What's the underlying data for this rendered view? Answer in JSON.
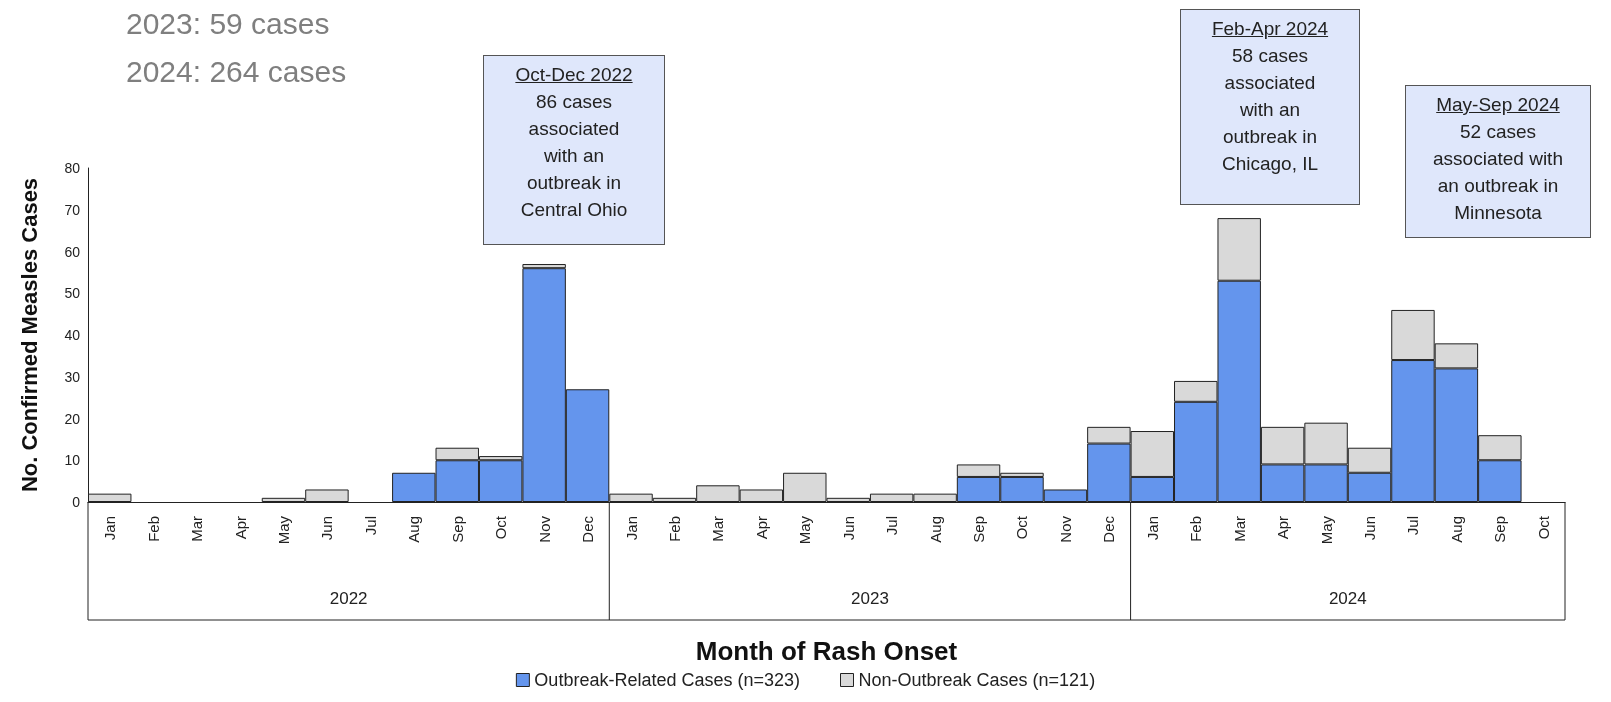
{
  "chart_data": {
    "type": "bar",
    "stacked": true,
    "categories": [
      "Jan",
      "Feb",
      "Mar",
      "Apr",
      "May",
      "Jun",
      "Jul",
      "Aug",
      "Sep",
      "Oct",
      "Nov",
      "Dec",
      "Jan",
      "Feb",
      "Mar",
      "Apr",
      "May",
      "Jun",
      "Jul",
      "Aug",
      "Sep",
      "Oct",
      "Nov",
      "Dec",
      "Jan",
      "Feb",
      "Mar",
      "Apr",
      "May",
      "Jun",
      "Jul",
      "Aug",
      "Sep",
      "Oct"
    ],
    "series": [
      {
        "name": "Outbreak-Related Cases (n=323)",
        "color": "#6495ed",
        "values": [
          0,
          0,
          0,
          0,
          0,
          0,
          0,
          7,
          10,
          10,
          56,
          27,
          0,
          0,
          0,
          0,
          0,
          0,
          0,
          0,
          6,
          6,
          3,
          14,
          6,
          24,
          53,
          9,
          9,
          7,
          34,
          32,
          10,
          0
        ]
      },
      {
        "name": "Non-Outbreak Cases (n=121)",
        "color": "#d9d9d9",
        "values": [
          2,
          0,
          0,
          0,
          1,
          3,
          0,
          0,
          3,
          1,
          1,
          0,
          2,
          1,
          4,
          3,
          7,
          1,
          2,
          2,
          3,
          1,
          0,
          4,
          11,
          5,
          15,
          9,
          10,
          6,
          12,
          6,
          6,
          0
        ]
      }
    ],
    "xlabel": "Month of Rash Onset",
    "ylabel": "No. Confirmed Measles Cases",
    "ylim": [
      0,
      80
    ],
    "yticks": [
      0,
      10,
      20,
      30,
      40,
      50,
      60,
      70,
      80
    ],
    "grid": false,
    "legend": "bottom",
    "annotations": [
      "2023: 59 cases",
      "2024: 264 cases",
      "Oct-Dec 2022\n86 cases\nassociated\nwith an\noutbreak in\nCentral Ohio",
      "Feb-Apr 2024\n58 cases\nassociated\nwith an\noutbreak in\nChicago, IL",
      "May-Sep 2024\n52 cases\nassociated with\nan outbreak in\nMinnesota",
      "2022",
      "2023",
      "2024"
    ]
  }
}
